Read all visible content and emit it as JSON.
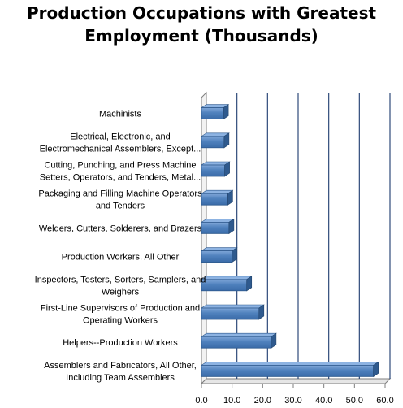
{
  "chart_data": {
    "type": "bar",
    "orientation": "horizontal",
    "title_lines": [
      "Production Occupations with Greatest",
      "Employment (Thousands)"
    ],
    "categories": [
      [
        "Machinists"
      ],
      [
        "Electrical, Electronic, and",
        "Electromechanical Assemblers, Except..."
      ],
      [
        "Cutting, Punching, and Press Machine",
        "Setters, Operators, and Tenders, Metal..."
      ],
      [
        "Packaging and Filling Machine Operators",
        "and Tenders"
      ],
      [
        "Welders, Cutters, Solderers, and Brazers"
      ],
      [
        "Production Workers, All Other"
      ],
      [
        "Inspectors, Testers, Sorters, Samplers, and",
        "Weighers"
      ],
      [
        "First-Line Supervisors of Production and",
        "Operating Workers"
      ],
      [
        "Helpers--Production Workers"
      ],
      [
        "Assemblers and Fabricators, All Other,",
        "Including Team Assemblers"
      ]
    ],
    "values": [
      7.2,
      7.4,
      7.6,
      8.6,
      9.0,
      10.0,
      14.8,
      18.8,
      22.8,
      56.2
    ],
    "xlim": [
      0,
      60
    ],
    "xticks": [
      "0.0",
      "10.0",
      "20.0",
      "30.0",
      "40.0",
      "50.0",
      "60.0"
    ],
    "grid": true,
    "bar_color": "#4F81BD",
    "grid_color": "#2E4A7A"
  }
}
